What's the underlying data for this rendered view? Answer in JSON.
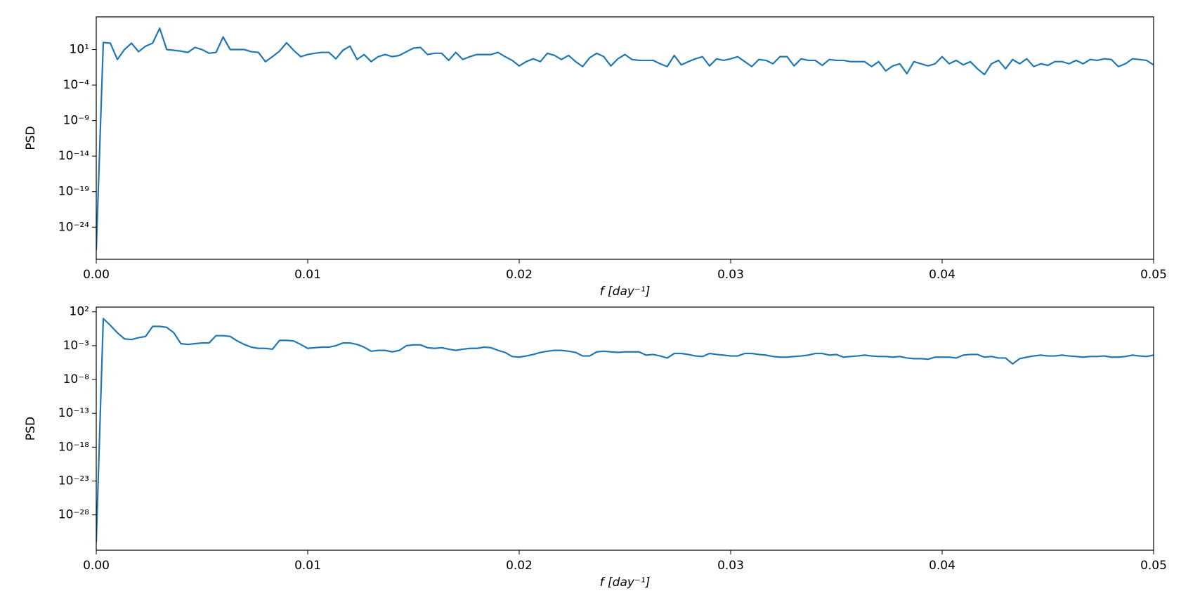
{
  "chart_data": [
    {
      "type": "line",
      "ylabel": "PSD",
      "xlabel": "f [day⁻¹]",
      "yscale": "log",
      "color": "#1f77b4",
      "x": [
        0,
        0.000333,
        0.000667,
        0.001,
        0.001333,
        0.001667,
        0.002,
        0.002333,
        0.002667,
        0.003,
        0.003333,
        0.003667,
        0.004,
        0.004333,
        0.004667,
        0.005,
        0.005333,
        0.005667,
        0.006,
        0.006333,
        0.006667,
        0.007,
        0.007333,
        0.007667,
        0.008,
        0.008333,
        0.008667,
        0.009,
        0.009333,
        0.009667,
        0.01,
        0.010333,
        0.010667,
        0.011,
        0.011333,
        0.011667,
        0.012,
        0.012333,
        0.012667,
        0.013,
        0.013333,
        0.013667,
        0.014,
        0.014333,
        0.014667,
        0.015,
        0.015333,
        0.015667,
        0.016,
        0.016333,
        0.016667,
        0.017,
        0.017333,
        0.017667,
        0.018,
        0.018333,
        0.018667,
        0.019,
        0.019333,
        0.019667,
        0.02,
        0.020333,
        0.020667,
        0.021,
        0.021333,
        0.021667,
        0.022,
        0.022333,
        0.022667,
        0.023,
        0.023333,
        0.023667,
        0.024,
        0.024333,
        0.024667,
        0.025,
        0.025333,
        0.025667,
        0.026,
        0.026333,
        0.026667,
        0.027,
        0.027333,
        0.027667,
        0.028,
        0.028333,
        0.028667,
        0.029,
        0.029333,
        0.029667,
        0.03,
        0.030333,
        0.030667,
        0.031,
        0.031333,
        0.031667,
        0.032,
        0.032333,
        0.032667,
        0.033,
        0.033333,
        0.033667,
        0.034,
        0.034333,
        0.034667,
        0.035,
        0.035333,
        0.035667,
        0.036,
        0.036333,
        0.036667,
        0.037,
        0.037333,
        0.037667,
        0.038,
        0.038333,
        0.038667,
        0.039,
        0.039333,
        0.039667,
        0.04,
        0.040333,
        0.040667,
        0.041,
        0.041333,
        0.041667,
        0.042,
        0.042333,
        0.042667,
        0.043,
        0.043333,
        0.043667,
        0.044,
        0.044333,
        0.044667,
        0.045,
        0.045333,
        0.045667,
        0.046,
        0.046333,
        0.046667,
        0.047,
        0.047333,
        0.047667,
        0.048,
        0.048333,
        0.048667,
        0.049,
        0.049333,
        0.049667,
        0.05
      ],
      "values": [
        6e-28,
        100.0,
        80.0,
        0.4,
        10.0,
        80.0,
        5.0,
        30.0,
        80.0,
        10000.0,
        10.0,
        8.0,
        6.0,
        4.0,
        20.0,
        10.0,
        3.0,
        4.0,
        600.0,
        10.0,
        10.0,
        10.0,
        5.0,
        4.0,
        0.2,
        1.0,
        6.0,
        90.0,
        8.0,
        1.0,
        2.0,
        3.0,
        4.0,
        4.0,
        0.5,
        8.0,
        30.0,
        0.4,
        2.0,
        0.2,
        1.0,
        2.0,
        1.0,
        1.5,
        5.0,
        16.0,
        20.0,
        2.0,
        3.0,
        3.0,
        0.3,
        4.0,
        0.4,
        1.0,
        2.0,
        2.0,
        2.0,
        4.0,
        1.0,
        0.3,
        0.05,
        0.2,
        0.5,
        0.2,
        3.0,
        1.5,
        0.4,
        1.5,
        0.2,
        0.04,
        0.7,
        3.0,
        1.0,
        0.05,
        0.5,
        2.0,
        0.4,
        0.3,
        0.3,
        0.3,
        0.1,
        0.04,
        1.5,
        0.07,
        0.2,
        0.5,
        1.0,
        0.05,
        0.5,
        0.3,
        0.5,
        1.0,
        0.2,
        0.04,
        0.4,
        0.3,
        0.1,
        1.0,
        1.0,
        0.05,
        0.5,
        0.3,
        0.3,
        0.06,
        0.4,
        0.3,
        0.3,
        0.2,
        0.2,
        0.2,
        0.04,
        0.2,
        0.01,
        0.05,
        0.1,
        0.004,
        0.2,
        0.1,
        0.05,
        0.1,
        1.0,
        0.1,
        0.3,
        0.07,
        0.2,
        0.02,
        0.003,
        0.1,
        0.3,
        0.02,
        0.4,
        0.1,
        0.5,
        0.04,
        0.1,
        0.06,
        0.2,
        0.2,
        0.1,
        0.3,
        0.1,
        0.4,
        0.3,
        0.5,
        0.4,
        0.04,
        0.1,
        0.5,
        0.4,
        0.3,
        0.07
      ],
      "xlim": [
        0,
        0.05
      ],
      "xticks": [
        {
          "value": 0,
          "label": "0.00"
        },
        0.01,
        0.02,
        0.03,
        0.04,
        0.05
      ],
      "ylim": [
        3e-29,
        400000.0
      ],
      "yticks": [
        {
          "value": 10,
          "label": "10¹"
        },
        {
          "value": 0.0001,
          "label": "10⁻⁴"
        },
        {
          "value": 1e-09,
          "label": "10⁻⁹"
        },
        {
          "value": 1e-14,
          "label": "10⁻¹⁴"
        },
        {
          "value": 1e-19,
          "label": "10⁻¹⁹"
        },
        {
          "value": 1e-24,
          "label": "10⁻²⁴"
        }
      ]
    },
    {
      "type": "line",
      "ylabel": "PSD",
      "xlabel": "f [day⁻¹]",
      "yscale": "log",
      "color": "#1f77b4",
      "x": [
        0,
        0.000333,
        0.000667,
        0.001,
        0.001333,
        0.001667,
        0.002,
        0.002333,
        0.002667,
        0.003,
        0.003333,
        0.003667,
        0.004,
        0.004333,
        0.004667,
        0.005,
        0.005333,
        0.005667,
        0.006,
        0.006333,
        0.006667,
        0.007,
        0.007333,
        0.007667,
        0.008,
        0.008333,
        0.008667,
        0.009,
        0.009333,
        0.009667,
        0.01,
        0.010333,
        0.010667,
        0.011,
        0.011333,
        0.011667,
        0.012,
        0.012333,
        0.012667,
        0.013,
        0.013333,
        0.013667,
        0.014,
        0.014333,
        0.014667,
        0.015,
        0.015333,
        0.015667,
        0.016,
        0.016333,
        0.016667,
        0.017,
        0.017333,
        0.017667,
        0.018,
        0.018333,
        0.018667,
        0.019,
        0.019333,
        0.019667,
        0.02,
        0.020333,
        0.020667,
        0.021,
        0.021333,
        0.021667,
        0.022,
        0.022333,
        0.022667,
        0.023,
        0.023333,
        0.023667,
        0.024,
        0.024333,
        0.024667,
        0.025,
        0.025333,
        0.025667,
        0.026,
        0.026333,
        0.026667,
        0.027,
        0.027333,
        0.027667,
        0.028,
        0.028333,
        0.028667,
        0.029,
        0.029333,
        0.029667,
        0.03,
        0.030333,
        0.030667,
        0.031,
        0.031333,
        0.031667,
        0.032,
        0.032333,
        0.032667,
        0.033,
        0.033333,
        0.033667,
        0.034,
        0.034333,
        0.034667,
        0.035,
        0.035333,
        0.035667,
        0.036,
        0.036333,
        0.036667,
        0.037,
        0.037333,
        0.037667,
        0.038,
        0.038333,
        0.038667,
        0.039,
        0.039333,
        0.039667,
        0.04,
        0.040333,
        0.040667,
        0.041,
        0.041333,
        0.041667,
        0.042,
        0.042333,
        0.042667,
        0.043,
        0.043333,
        0.043667,
        0.044,
        0.044333,
        0.044667,
        0.045,
        0.045333,
        0.045667,
        0.046,
        0.046333,
        0.046667,
        0.047,
        0.047333,
        0.047667,
        0.048,
        0.048333,
        0.048667,
        0.049,
        0.049333,
        0.049667,
        0.05
      ],
      "values": [
        1e-32,
        10.0,
        1.0,
        0.08,
        0.01,
        0.008,
        0.015,
        0.023,
        0.7,
        0.7,
        0.5,
        0.08,
        0.002,
        0.0015,
        0.002,
        0.0025,
        0.0025,
        0.03,
        0.03,
        0.023,
        0.005,
        0.0015,
        0.0006,
        0.0004,
        0.0004,
        0.0003,
        0.006,
        0.006,
        0.005,
        0.0015,
        0.0004,
        0.0005,
        0.0006,
        0.0006,
        0.001,
        0.0025,
        0.0025,
        0.0015,
        0.0006,
        0.00015,
        0.0002,
        0.0002,
        0.00012,
        0.0002,
        0.001,
        0.0013,
        0.0013,
        0.0005,
        0.0004,
        0.0005,
        0.0003,
        0.0002,
        0.0003,
        0.0004,
        0.0004,
        0.0006,
        0.0005,
        0.0002,
        0.0001,
        2.5e-05,
        2e-05,
        3e-05,
        5e-05,
        0.0001,
        0.00015,
        0.0002,
        0.0002,
        0.00015,
        0.0001,
        3e-05,
        3e-05,
        0.00012,
        0.00015,
        0.00012,
        0.0001,
        0.00012,
        0.00012,
        0.00012,
        4e-05,
        5e-05,
        3e-05,
        1.5e-05,
        7e-05,
        7e-05,
        5e-05,
        3e-05,
        2.5e-05,
        7e-05,
        5e-05,
        4e-05,
        3e-05,
        3e-05,
        7e-05,
        7e-05,
        5e-05,
        4e-05,
        2.5e-05,
        2e-05,
        2e-05,
        2.5e-05,
        3e-05,
        4e-05,
        7e-05,
        7e-05,
        4e-05,
        5e-05,
        2e-05,
        2.5e-05,
        3e-05,
        4e-05,
        3e-05,
        2.5e-05,
        2.5e-05,
        2e-05,
        2.5e-05,
        1.5e-05,
        1.2e-05,
        1.2e-05,
        1e-05,
        2e-05,
        2e-05,
        2e-05,
        1.5e-05,
        4e-05,
        5e-05,
        5e-05,
        2e-05,
        2.5e-05,
        1.5e-05,
        1.5e-05,
        2e-06,
        1.2e-05,
        2e-05,
        3e-05,
        4e-05,
        3e-05,
        3e-05,
        4e-05,
        3e-05,
        2.5e-05,
        2e-05,
        2.5e-05,
        2.5e-05,
        3e-05,
        2e-05,
        2e-05,
        2.5e-05,
        4e-05,
        3e-05,
        2.5e-05,
        4e-05
      ],
      "xlim": [
        0,
        0.05
      ],
      "xticks": [
        {
          "value": 0,
          "label": "0.00"
        },
        0.01,
        0.02,
        0.03,
        0.04,
        0.05
      ],
      "ylim": [
        6e-34,
        500.0
      ],
      "yticks": [
        {
          "value": 100,
          "label": "10²"
        },
        {
          "value": 0.001,
          "label": "10⁻³"
        },
        {
          "value": 1e-08,
          "label": "10⁻⁸"
        },
        {
          "value": 1e-13,
          "label": "10⁻¹³"
        },
        {
          "value": 1e-18,
          "label": "10⁻¹⁸"
        },
        {
          "value": 1e-23,
          "label": "10⁻²³"
        },
        {
          "value": 1e-28,
          "label": "10⁻²⁸"
        }
      ]
    }
  ]
}
